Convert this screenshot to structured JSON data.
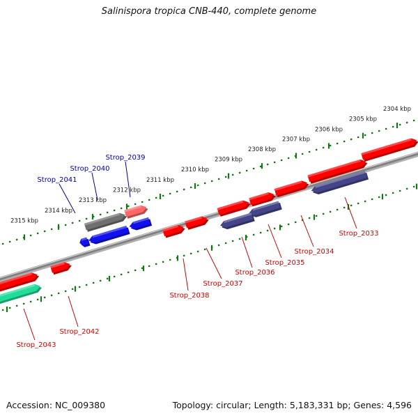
{
  "title": "Salinispora tropica CNB-440, complete genome",
  "footer": {
    "accession": "Accession: NC_009380",
    "summary": "Topology: circular; Length: 5,183,331 bp; Genes: 4,596"
  },
  "colors": {
    "forward_gene": "#ff0000",
    "reverse_gene": "#3333cc",
    "highlight_label": "#000099",
    "default_label": "#cc0000",
    "grey_feature": "#707070",
    "teal_feature": "#22dd99",
    "backbone": "#808080",
    "tick": "#117711"
  },
  "scale": {
    "ticks": [
      "2304 kbp",
      "2305 kbp",
      "2306 kbp",
      "2307 kbp",
      "2308 kbp",
      "2309 kbp",
      "2310 kbp",
      "2311 kbp",
      "2312 kbp",
      "2313 kbp",
      "2314 kbp",
      "2315 kbp"
    ]
  },
  "genes": [
    {
      "name": "Strop_2033",
      "label": "Strop_2033",
      "strand": "+",
      "highlight": false
    },
    {
      "name": "Strop_2034",
      "label": "Strop_2034",
      "strand": "+",
      "highlight": false
    },
    {
      "name": "Strop_2035",
      "label": "Strop_2035",
      "strand": "-",
      "highlight": false
    },
    {
      "name": "Strop_2036",
      "label": "Strop_2036",
      "strand": "-",
      "highlight": false
    },
    {
      "name": "Strop_2037",
      "label": "Strop_2037",
      "strand": "+",
      "highlight": false
    },
    {
      "name": "Strop_2038",
      "label": "Strop_2038",
      "strand": "+",
      "highlight": false
    },
    {
      "name": "Strop_2039",
      "label": "Strop_2039",
      "strand": "-",
      "highlight": true
    },
    {
      "name": "Strop_2040",
      "label": "Strop_2040",
      "strand": "-",
      "highlight": true
    },
    {
      "name": "Strop_2041",
      "label": "Strop_2041",
      "strand": "-",
      "highlight": true
    },
    {
      "name": "Strop_2042",
      "label": "Strop_2042",
      "strand": "+",
      "highlight": false
    },
    {
      "name": "Strop_2043",
      "label": "Strop_2043",
      "strand": "+",
      "highlight": false
    }
  ]
}
